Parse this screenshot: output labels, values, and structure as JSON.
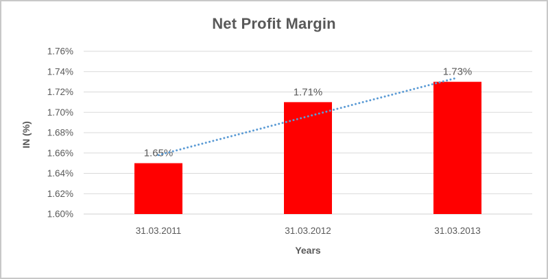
{
  "chart_data": {
    "type": "bar",
    "title": "Net Profit Margin",
    "xlabel": "Years",
    "ylabel": "IN (%)",
    "categories": [
      "31.03.2011",
      "31.03.2012",
      "31.03.2013"
    ],
    "values": [
      1.65,
      1.71,
      1.73
    ],
    "data_labels": [
      "1.65%",
      "1.71%",
      "1.73%"
    ],
    "ylim": [
      1.6,
      1.76
    ],
    "ytick_step": 0.02,
    "ytick_labels": [
      "1.60%",
      "1.62%",
      "1.64%",
      "1.66%",
      "1.68%",
      "1.70%",
      "1.72%",
      "1.74%",
      "1.76%"
    ],
    "grid": true,
    "legend": "none",
    "trendline": {
      "type": "linear",
      "style": "dotted",
      "start_value": 1.658,
      "end_value": 1.734
    },
    "colors": {
      "bar": "#FF0000",
      "trendline": "#5B9BD5",
      "text": "#595959",
      "gridline": "#D9D9D9",
      "axis_line": "#D0D0D0",
      "frame_border": "#C8C8C8"
    }
  }
}
